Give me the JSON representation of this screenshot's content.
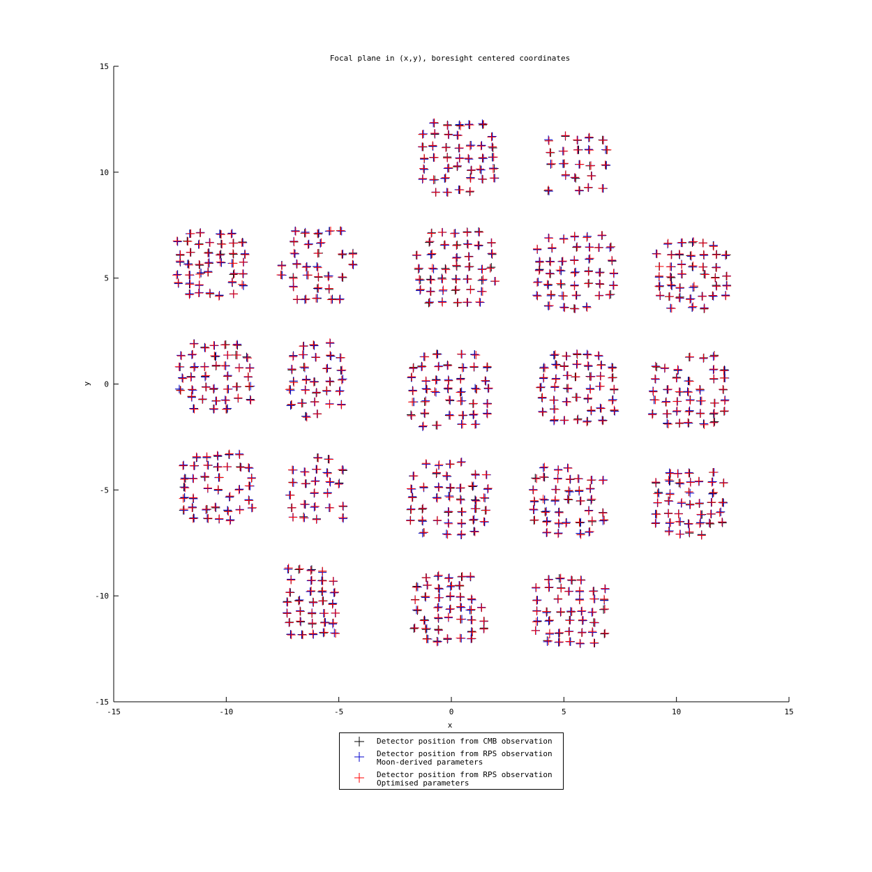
{
  "chart_data": {
    "type": "scatter",
    "title": "Focal plane in (x,y), boresight centered coordinates",
    "xlabel": "x",
    "ylabel": "y",
    "xlim": [
      -15,
      15
    ],
    "ylim": [
      -15,
      15
    ],
    "xticks": [
      -15,
      -10,
      -5,
      0,
      5,
      10,
      15
    ],
    "yticks": [
      -15,
      -10,
      -5,
      0,
      5,
      10,
      15
    ],
    "xtick_labels": [
      "-15",
      "-10",
      "-5",
      "0",
      "5",
      "10",
      "15"
    ],
    "ytick_labels": [
      "-15",
      "-10",
      "-5",
      "0",
      "5",
      "10",
      "15"
    ],
    "marker": "+",
    "legend_location": "bottom-center, outside axes",
    "series": [
      {
        "name": "Detector position from CMB observation",
        "color": "#000000"
      },
      {
        "name": "Detector position from RPS observation Moon-derived parameters",
        "color": "#0000cc"
      },
      {
        "name": " Detector position from RPS observation Optimised parameters",
        "color": "#ff0000"
      }
    ],
    "detector_modules": [
      {
        "center": [
          0.3,
          10.7
        ],
        "half_width": 1.8,
        "half_height": 1.7,
        "spacing": 0.52
      },
      {
        "center": [
          5.6,
          10.4
        ],
        "half_width": 1.7,
        "half_height": 1.7,
        "spacing": 0.6
      },
      {
        "center": [
          -10.7,
          5.7
        ],
        "half_width": 1.9,
        "half_height": 1.8,
        "spacing": 0.48
      },
      {
        "center": [
          -5.9,
          5.6
        ],
        "half_width": 1.6,
        "half_height": 1.8,
        "spacing": 0.52
      },
      {
        "center": [
          0.2,
          5.5
        ],
        "half_width": 1.9,
        "half_height": 1.9,
        "spacing": 0.55
      },
      {
        "center": [
          5.5,
          5.3
        ],
        "half_width": 1.8,
        "half_height": 1.8,
        "spacing": 0.55
      },
      {
        "center": [
          10.7,
          5.1
        ],
        "half_width": 1.6,
        "half_height": 1.8,
        "spacing": 0.5
      },
      {
        "center": [
          -10.5,
          0.3
        ],
        "half_width": 1.9,
        "half_height": 1.9,
        "spacing": 0.5
      },
      {
        "center": [
          -6.0,
          0.2
        ],
        "half_width": 1.5,
        "half_height": 1.9,
        "spacing": 0.55
      },
      {
        "center": [
          -0.1,
          -0.3
        ],
        "half_width": 2.0,
        "half_height": 1.8,
        "spacing": 0.55
      },
      {
        "center": [
          5.6,
          -0.2
        ],
        "half_width": 1.9,
        "half_height": 1.9,
        "spacing": 0.52
      },
      {
        "center": [
          10.6,
          -0.3
        ],
        "half_width": 1.8,
        "half_height": 1.8,
        "spacing": 0.52
      },
      {
        "center": [
          -10.4,
          -4.9
        ],
        "half_width": 1.9,
        "half_height": 1.8,
        "spacing": 0.5
      },
      {
        "center": [
          -6.0,
          -5.2
        ],
        "half_width": 1.5,
        "half_height": 1.9,
        "spacing": 0.55
      },
      {
        "center": [
          -0.1,
          -5.4
        ],
        "half_width": 2.0,
        "half_height": 1.9,
        "spacing": 0.55
      },
      {
        "center": [
          5.2,
          -5.5
        ],
        "half_width": 1.9,
        "half_height": 1.9,
        "spacing": 0.5
      },
      {
        "center": [
          10.6,
          -5.6
        ],
        "half_width": 1.8,
        "half_height": 1.8,
        "spacing": 0.48
      },
      {
        "center": [
          -6.2,
          -10.3
        ],
        "half_width": 1.4,
        "half_height": 1.8,
        "spacing": 0.5
      },
      {
        "center": [
          -0.1,
          -10.6
        ],
        "half_width": 1.9,
        "half_height": 1.8,
        "spacing": 0.5
      },
      {
        "center": [
          5.3,
          -10.7
        ],
        "half_width": 1.8,
        "half_height": 1.7,
        "spacing": 0.5
      }
    ]
  },
  "legend": {
    "items": [
      {
        "label": "Detector position from CMB observation",
        "color": "#000000",
        "icon": "plus-marker"
      },
      {
        "label": "Detector position from RPS observation\nMoon-derived parameters",
        "color": "#0000cc",
        "icon": "plus-marker"
      },
      {
        "label": " Detector position from RPS observation\nOptimised parameters",
        "color": "#ff0000",
        "icon": "plus-marker"
      }
    ]
  }
}
